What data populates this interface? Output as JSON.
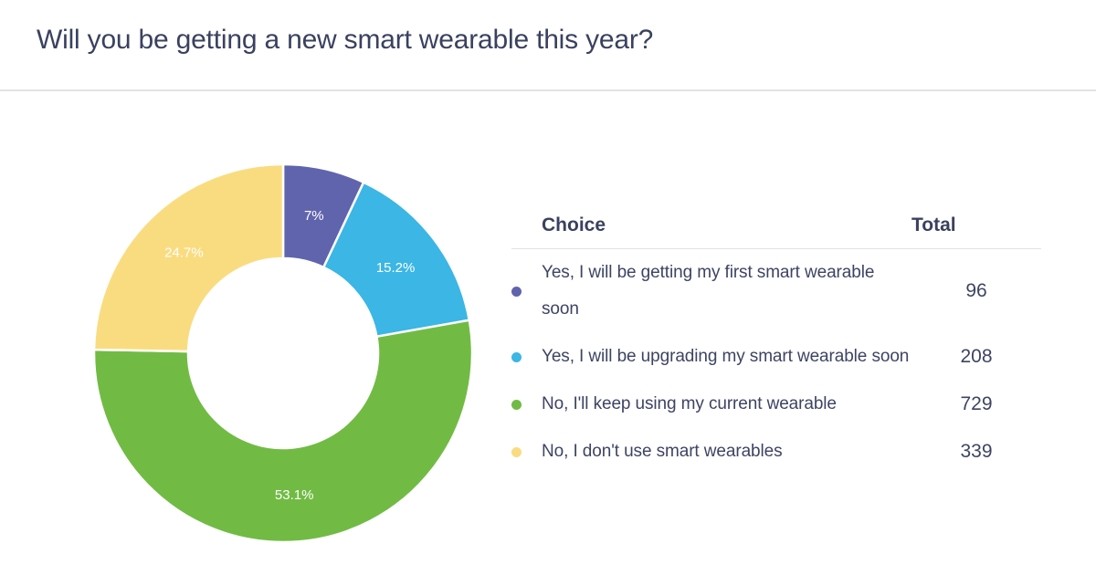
{
  "title": {
    "text": "Will you be getting a new smart wearable this year?"
  },
  "chart_data": {
    "type": "pie",
    "subtype": "donut",
    "title": "Will you be getting a new smart wearable this year?",
    "start_angle_deg": 0,
    "direction": "clockwise",
    "inner_radius_ratio": 0.5,
    "legend_position": "right",
    "slices": [
      {
        "label": "Yes, I will be getting my first smart wearable soon",
        "percent": 7.0,
        "percent_label": "7%",
        "total": 96,
        "color": "#6064AD"
      },
      {
        "label": "Yes, I will be upgrading my smart wearable soon",
        "percent": 15.2,
        "percent_label": "15.2%",
        "total": 208,
        "color": "#3BB6E5"
      },
      {
        "label": "No, I'll keep using my current wearable",
        "percent": 53.1,
        "percent_label": "53.1%",
        "total": 729,
        "color": "#71BB44"
      },
      {
        "label": "No, I don't use smart wearables",
        "percent": 24.7,
        "percent_label": "24.7%",
        "total": 339,
        "color": "#FADC80"
      }
    ]
  },
  "table": {
    "headers": {
      "choice": "Choice",
      "total": "Total"
    }
  },
  "theme": {
    "text": "#3D4464",
    "heading": "#3A4160",
    "divider": "#E3E3E3",
    "background": "#FFFFFF",
    "percent_label_color": "#FFFFFF"
  }
}
